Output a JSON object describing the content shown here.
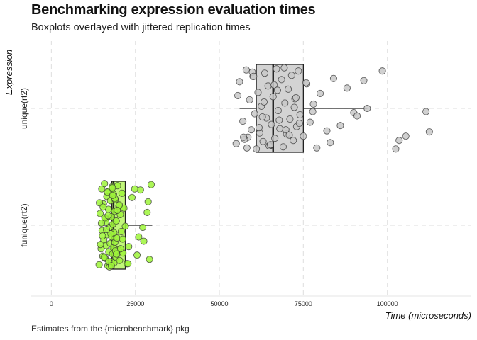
{
  "title": "Benchmarking expression evaluation times",
  "subtitle": "Boxplots overlayed with jittered replication times",
  "caption": "Estimates from the {microbenchmark} pkg",
  "colors": {
    "funique_fill": "#c2f77a",
    "funique_point": "#9ef53a",
    "unique_fill": "#d3d3d3",
    "unique_point": "#c8c8c8",
    "grid": "#e3e3e3",
    "box_stroke": "#222222"
  },
  "chart_data": {
    "type": "boxplot",
    "title": "Benchmarking expression evaluation times",
    "subtitle": "Boxplots overlayed with jittered replication times",
    "xlabel": "Time (microseconds)",
    "ylabel": "Expression",
    "xlim": [
      -6000,
      125000
    ],
    "x_ticks": [
      0,
      25000,
      50000,
      75000,
      100000
    ],
    "grid": true,
    "categories": [
      "funique(rt2)",
      "unique(rt2)"
    ],
    "series": [
      {
        "name": "funique(rt2)",
        "stats": {
          "whisker_low": 14000,
          "q1": 18000,
          "median": 18500,
          "q3": 22000,
          "whisker_high": 30000
        },
        "points": [
          14200,
          14500,
          14800,
          15000,
          15100,
          15300,
          15500,
          15600,
          15800,
          16000,
          16100,
          16300,
          16500,
          16600,
          16800,
          17000,
          17100,
          17200,
          17400,
          17500,
          17600,
          17800,
          17900,
          18000,
          18100,
          18200,
          18300,
          18400,
          18500,
          18600,
          18700,
          18800,
          18900,
          19000,
          19200,
          19300,
          19500,
          19700,
          19900,
          20100,
          20300,
          20500,
          20800,
          21000,
          21300,
          21600,
          22000,
          22500,
          23000,
          24000,
          25500,
          26500,
          27500,
          28500,
          29200,
          29700,
          14300,
          15200,
          16200,
          17300,
          18150,
          19100,
          20200,
          21200,
          15700,
          16700,
          17700,
          18900,
          14600,
          15900,
          17100,
          19600,
          16400,
          18250,
          20600,
          14900,
          17850,
          15400,
          19400,
          16900,
          22800,
          24800,
          26000,
          27200,
          28800
        ],
        "offsets": [
          0.37,
          -0.11,
          0.22,
          -0.34,
          0.05,
          0.29,
          -0.2,
          0.14,
          -0.39,
          0.31,
          -0.06,
          0.19,
          -0.27,
          0.09,
          0.38,
          -0.15,
          0.25,
          -0.32,
          0.02,
          0.17,
          -0.23,
          0.34,
          -0.08,
          0.11,
          -0.36,
          0.27,
          -0.01,
          0.21,
          -0.29,
          0.07,
          0.35,
          -0.13,
          0.16,
          -0.24,
          0.3,
          -0.04,
          0.12,
          -0.37,
          0.23,
          -0.18,
          0.33,
          -0.1,
          0.06,
          -0.3,
          0.26,
          -0.16,
          0.01,
          0.36,
          0.2,
          -0.26,
          0.28,
          -0.33,
          0.15,
          -0.12,
          0.32,
          -0.38,
          -0.21,
          0.1,
          -0.03,
          0.39,
          -0.35,
          0.24,
          -0.19,
          0.13,
          0.3,
          -0.31,
          0.08,
          -0.25,
          0.18,
          -0.07,
          0.34,
          -0.14,
          0.04,
          -0.28,
          0.22,
          -0.02,
          0.38,
          -0.17,
          0.27,
          -0.09,
          0.36,
          -0.34,
          0.11,
          0.02,
          -0.22
        ]
      },
      {
        "name": "unique(rt2)",
        "stats": {
          "whisker_low": 56000,
          "q1": 61000,
          "median": 66000,
          "q3": 75000,
          "whisker_high": 94000
        },
        "points": [
          55000,
          56000,
          57000,
          58000,
          58500,
          59000,
          59500,
          60000,
          60500,
          61000,
          61500,
          62000,
          62500,
          63000,
          63500,
          64000,
          64500,
          65000,
          65500,
          66000,
          66500,
          67000,
          67500,
          68000,
          68500,
          69000,
          69500,
          70000,
          70500,
          71000,
          71500,
          72000,
          72500,
          73000,
          73500,
          74000,
          75000,
          76000,
          77000,
          78000,
          79000,
          80000,
          82000,
          83000,
          84000,
          86000,
          88000,
          90000,
          91000,
          93000,
          94000,
          98500,
          102500,
          103500,
          105500,
          111500,
          112500,
          55500,
          57500,
          59800,
          61800,
          63300,
          64800,
          66300,
          67800,
          69300,
          70800,
          72300,
          73800,
          60200,
          62800,
          65200,
          67300,
          69800,
          72800,
          57200,
          75800,
          58200,
          77800
        ],
        "offsets": [
          0.33,
          -0.25,
          0.12,
          -0.36,
          0.27,
          -0.08,
          0.2,
          -0.3,
          0.05,
          0.38,
          -0.15,
          0.23,
          -0.02,
          0.31,
          -0.33,
          0.09,
          -0.21,
          0.35,
          0.15,
          -0.11,
          0.28,
          -0.37,
          0.02,
          0.19,
          -0.27,
          0.36,
          -0.05,
          0.24,
          -0.18,
          0.1,
          -0.31,
          0.3,
          -0.09,
          0.17,
          -0.35,
          0.06,
          0.26,
          -0.23,
          0.13,
          -0.04,
          0.37,
          -0.14,
          0.21,
          0.32,
          -0.28,
          0.16,
          -0.19,
          0.04,
          0.07,
          -0.26,
          0.0,
          -0.35,
          0.38,
          0.3,
          0.26,
          0.03,
          0.22,
          -0.12,
          0.29,
          -0.34,
          0.18,
          -0.06,
          0.35,
          -0.22,
          0.11,
          -0.38,
          0.25,
          -0.01,
          0.14,
          -0.3,
          0.08,
          0.34,
          -0.17,
          0.2,
          -0.1,
          0.27,
          -0.24,
          0.37,
          0.03
        ]
      }
    ]
  }
}
